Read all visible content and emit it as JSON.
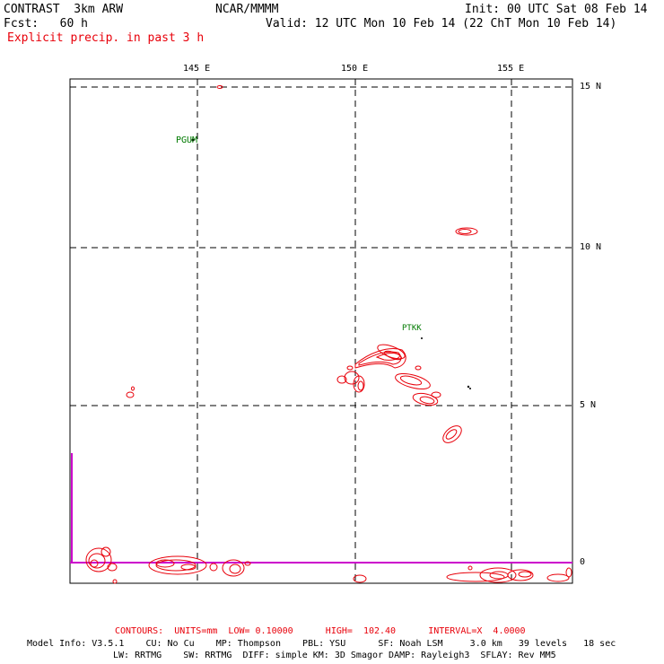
{
  "header": {
    "model": "CONTRAST  3km ARW",
    "org": "NCAR/MMMM",
    "init": "Init: 00 UTC Sat 08 Feb 14",
    "fcst": "Fcst:   60 h",
    "valid": "Valid: 12 UTC Mon 10 Feb 14 (22 ChT Mon 10 Feb 14)",
    "field": "Explicit precip. in past 3 h"
  },
  "map": {
    "lon_labels": [
      "145 E",
      "150 E",
      "155 E"
    ],
    "lat_labels": [
      "15 N",
      "10 N",
      "5 N",
      "0"
    ],
    "stations": [
      "PGUM",
      "PTKK"
    ],
    "colors": {
      "contour": "#e8000a",
      "grid": "#000000",
      "equator": "#cc00cc",
      "station": "#007a00"
    }
  },
  "footer": {
    "contours": "CONTOURS:  UNITS=mm  LOW= 0.10000      HIGH=  102.40      INTERVAL=X  4.0000",
    "model_info_1": "Model Info: V3.5.1    CU: No Cu    MP: Thompson    PBL: YSU      SF: Noah LSM     3.0 km   39 levels   18 sec",
    "model_info_2": "LW: RRTMG    SW: RRTMG  DIFF: simple KM: 3D Smagor DAMP: Rayleigh3  SFLAY: Rev MM5"
  }
}
